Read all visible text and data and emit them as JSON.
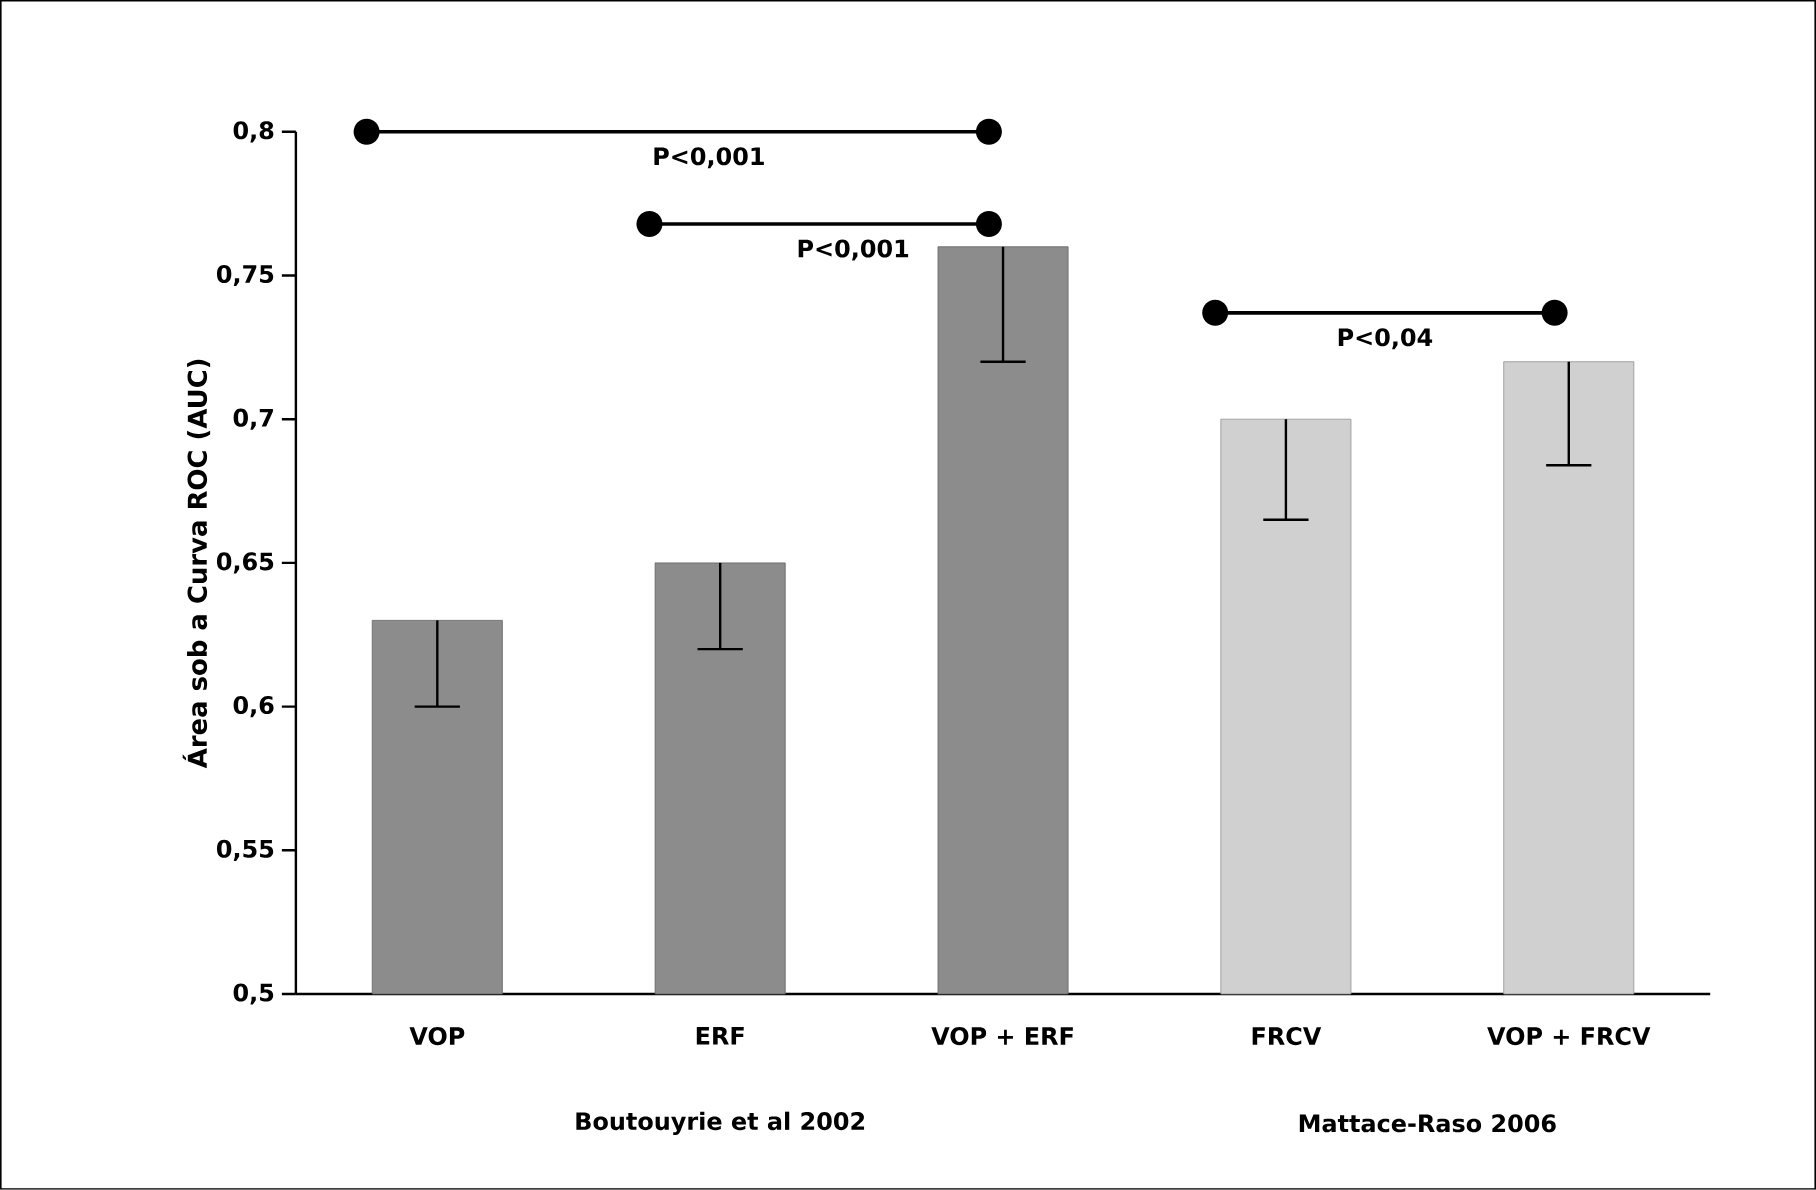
{
  "chart_data": {
    "type": "bar",
    "ylabel": "Área sob a Curva ROC (AUC)",
    "categories": [
      "VOP",
      "ERF",
      "VOP + ERF",
      "FRCV",
      "VOP + FRCV"
    ],
    "values": [
      0.63,
      0.65,
      0.76,
      0.7,
      0.72
    ],
    "errors": [
      [
        0.6,
        0.63
      ],
      [
        0.62,
        0.65
      ],
      [
        0.72,
        0.76
      ],
      [
        0.665,
        0.7
      ],
      [
        0.684,
        0.72
      ]
    ],
    "colors": [
      "#8c8c8c",
      "#8c8c8c",
      "#8c8c8c",
      "#d0d0d0",
      "#d0d0d0"
    ],
    "ylim": [
      0.5,
      0.8
    ],
    "yticks": [
      {
        "value": 0.5,
        "label": "0,5"
      },
      {
        "value": 0.55,
        "label": "0,55"
      },
      {
        "value": 0.6,
        "label": "0,6"
      },
      {
        "value": 0.65,
        "label": "0,65"
      },
      {
        "value": 0.7,
        "label": "0,7"
      },
      {
        "value": 0.75,
        "label": "0,75"
      },
      {
        "value": 0.8,
        "label": "0,8"
      }
    ],
    "grid": false,
    "annotations": [
      "P<0,001",
      "P<0,001",
      "P<0,04",
      "Boutouyrie et al 2002",
      "Mattace-Raso 2006"
    ]
  }
}
